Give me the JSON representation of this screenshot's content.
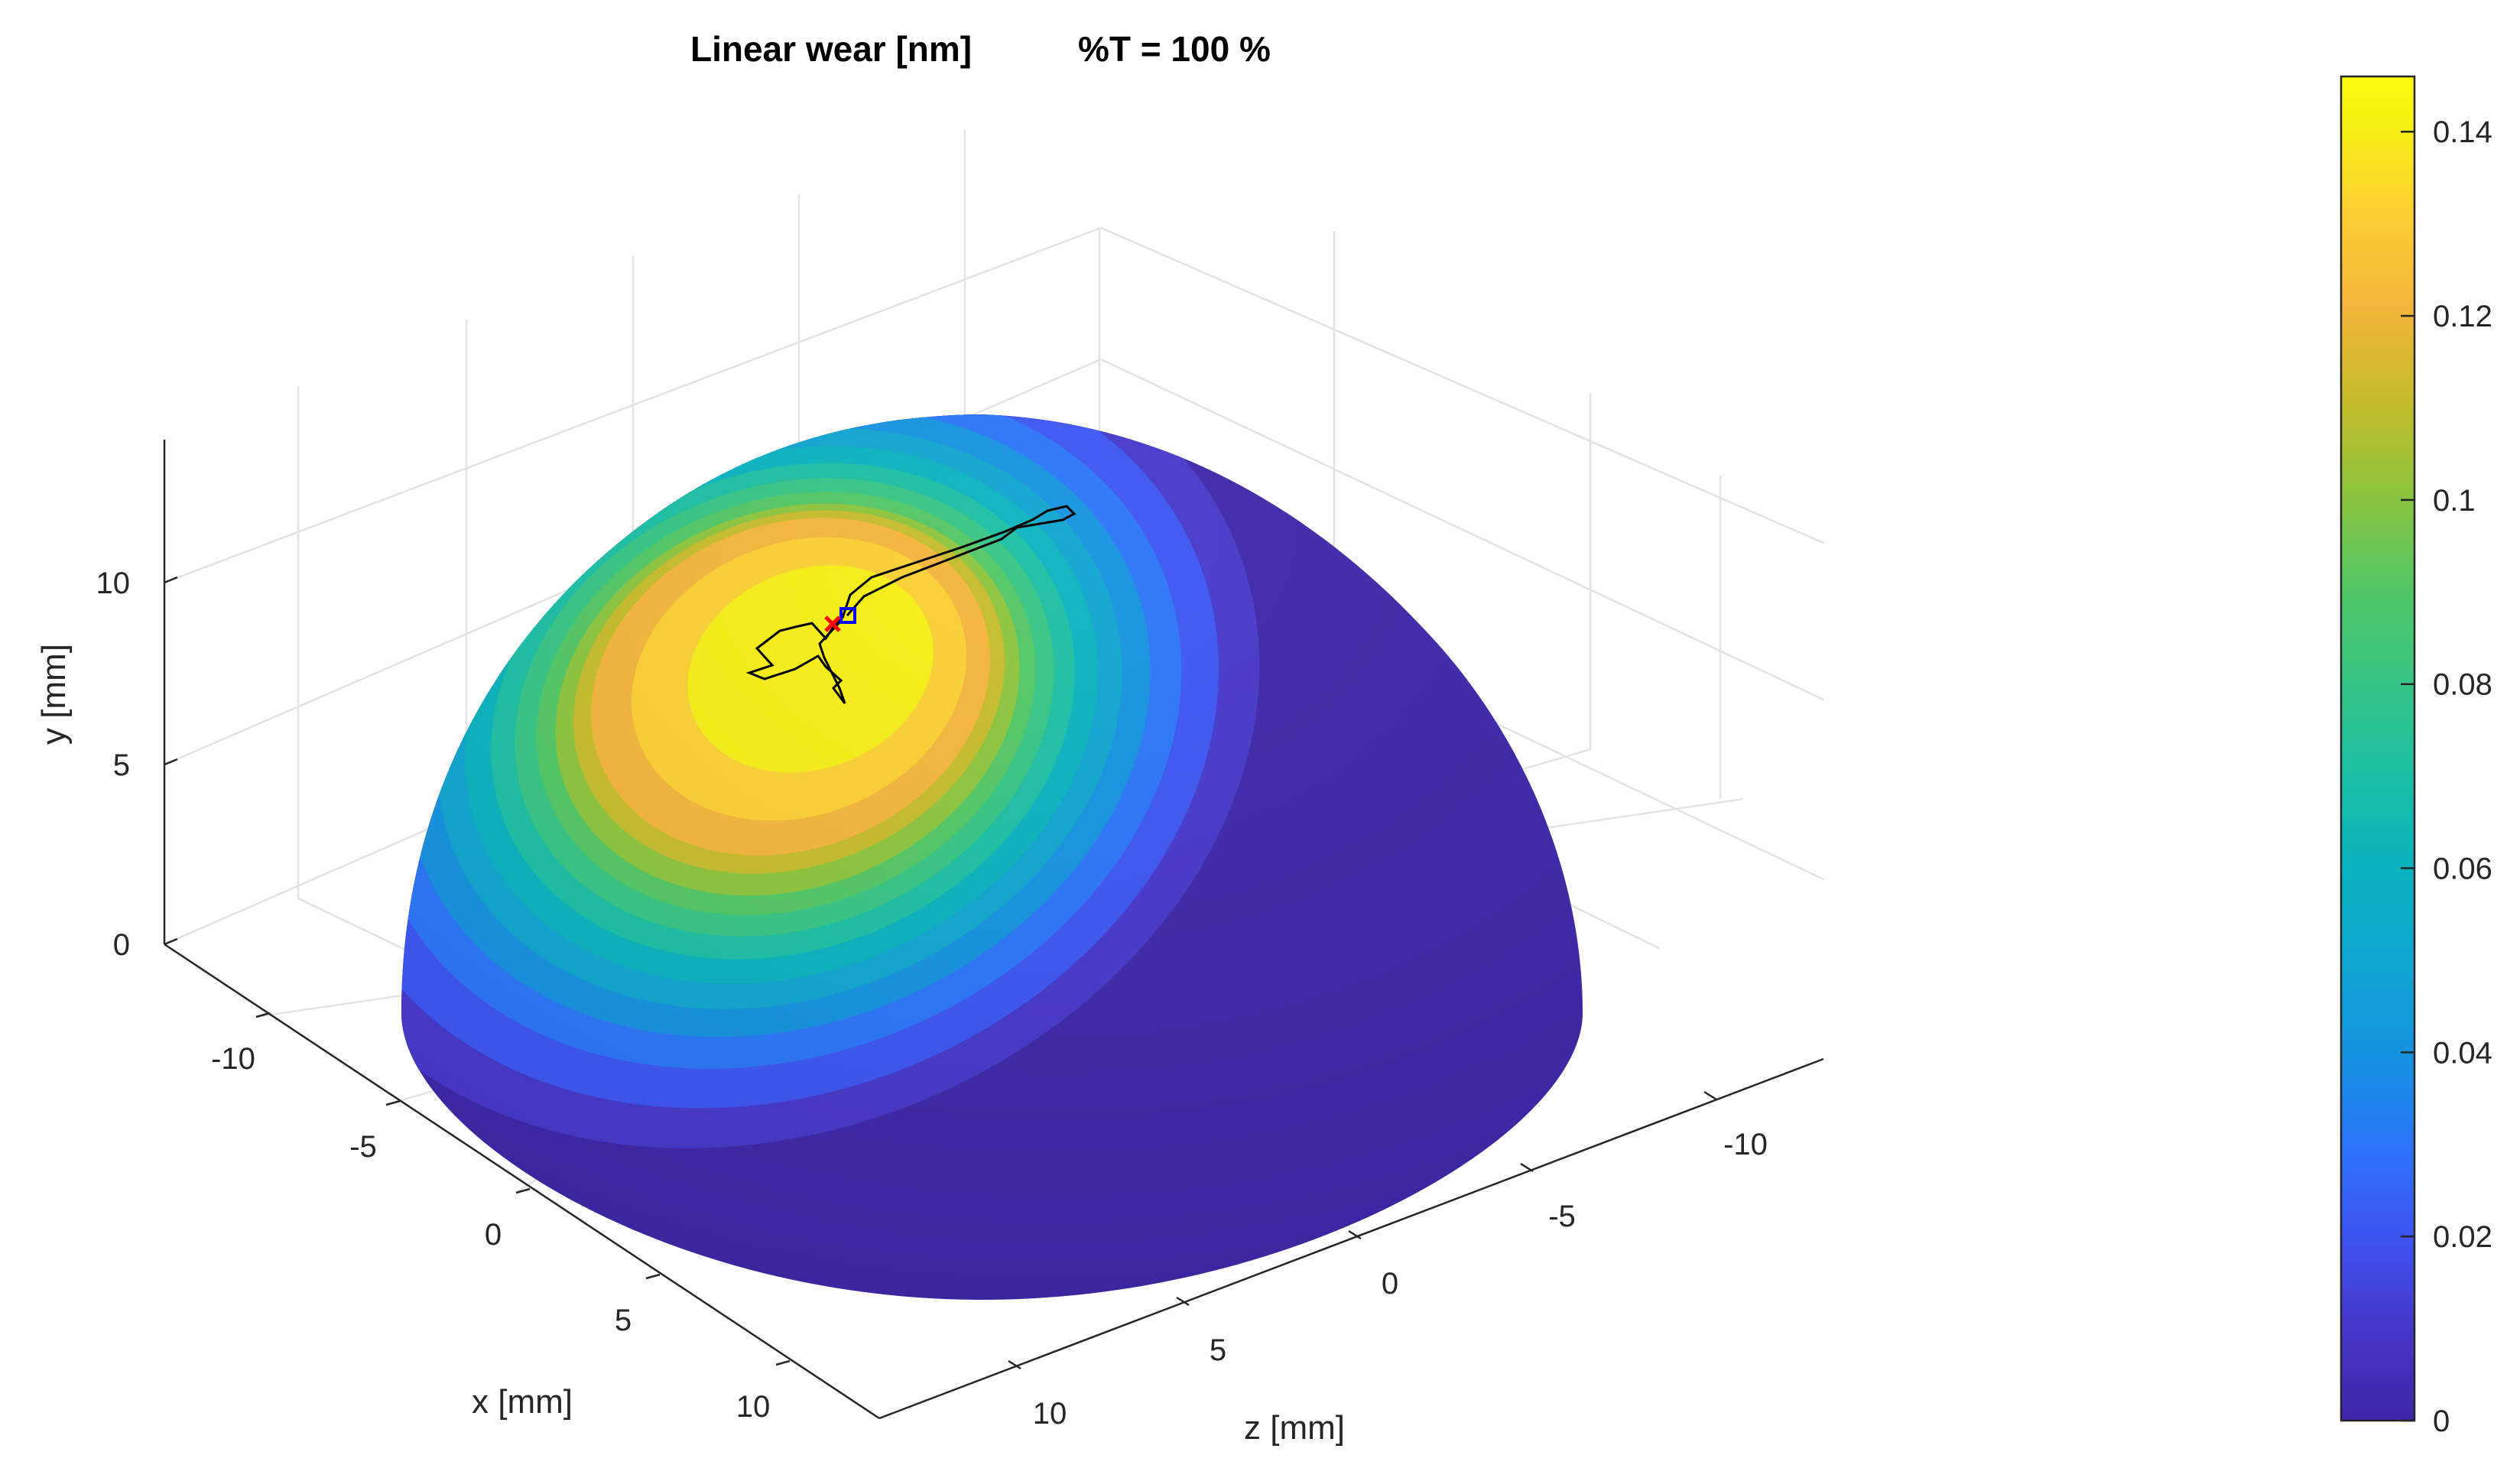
{
  "chart_data": {
    "type": "surface",
    "title_left": "Linear wear [nm]",
    "title_right": "%T = 100 %",
    "xlabel": "x [mm]",
    "ylabel": "y [mm]",
    "zlabel": "z [mm]",
    "x_ticks": [
      "-10",
      "-5",
      "0",
      "5",
      "10"
    ],
    "y_ticks": [
      "0",
      "5",
      "10"
    ],
    "z_ticks": [
      "-10",
      "-5",
      "0",
      "5",
      "10"
    ],
    "xlim": [
      -14,
      14
    ],
    "ylim": [
      0,
      14
    ],
    "zlim": [
      -14,
      14
    ],
    "grid": true,
    "hemisphere_radius": 14,
    "wear_field": {
      "center_x": -6,
      "center_y": 10,
      "center_z": -5,
      "peak_value": 0.14,
      "levels": [
        0.14,
        0.13,
        0.12,
        0.11,
        0.1,
        0.09,
        0.08,
        0.06,
        0.04,
        0.03,
        0.02,
        0.01
      ]
    },
    "colorbar": {
      "ticks": [
        "0",
        "0.02",
        "0.04",
        "0.06",
        "0.08",
        "0.1",
        "0.12",
        "0.14"
      ],
      "range": [
        0,
        0.146
      ]
    },
    "path_markers": {
      "start": "blue-square",
      "end": "red-cross",
      "line_color": "#000000"
    },
    "colors": {
      "v000": "#3e26a8",
      "v010": "#4537c9",
      "v020": "#3c55f2",
      "v030": "#2a75f8",
      "v040": "#1492e0",
      "v050": "#0fa5d0",
      "v060": "#08b3bf",
      "v070": "#1bbfa3",
      "v080": "#36c584",
      "v090": "#52c764",
      "v100": "#8dc43c",
      "v110": "#c5bc2a",
      "v120": "#f4b53a",
      "v130": "#fcd032",
      "v140": "#f7ef15",
      "v146": "#f9fb0e"
    }
  }
}
